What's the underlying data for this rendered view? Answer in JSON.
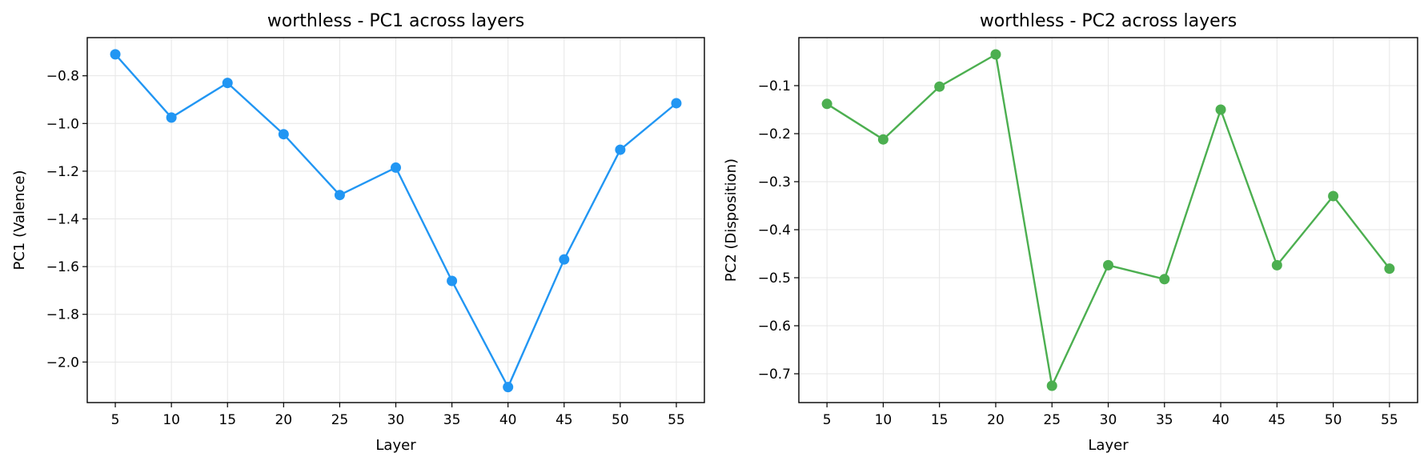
{
  "chart_data": [
    {
      "type": "line",
      "title": "worthless - PC1 across layers",
      "xlabel": "Layer",
      "ylabel": "PC1 (Valence)",
      "x": [
        5,
        10,
        15,
        20,
        25,
        30,
        35,
        40,
        45,
        50,
        55
      ],
      "series": [
        {
          "values": [
            -0.71,
            -0.975,
            -0.83,
            -1.045,
            -1.3,
            -1.185,
            -1.66,
            -2.105,
            -1.57,
            -1.11,
            -0.915
          ],
          "color": "#2196F3"
        }
      ],
      "xticks": [
        "5",
        "10",
        "15",
        "20",
        "25",
        "30",
        "35",
        "40",
        "45",
        "50",
        "55"
      ],
      "yticks": [
        -0.8,
        -1.0,
        -1.2,
        -1.4,
        -1.6,
        -1.8,
        -2.0
      ],
      "ytick_labels": [
        "−0.8",
        "−1.0",
        "−1.2",
        "−1.4",
        "−1.6",
        "−1.8",
        "−2.0"
      ],
      "xlim": [
        2.5,
        57.5
      ],
      "ylim": [
        -2.17,
        -0.64
      ],
      "grid": true
    },
    {
      "type": "line",
      "title": "worthless - PC2 across layers",
      "xlabel": "Layer",
      "ylabel": "PC2 (Disposition)",
      "x": [
        5,
        10,
        15,
        20,
        25,
        30,
        35,
        40,
        45,
        50,
        55
      ],
      "series": [
        {
          "values": [
            -0.138,
            -0.212,
            -0.102,
            -0.035,
            -0.725,
            -0.474,
            -0.503,
            -0.15,
            -0.474,
            -0.33,
            -0.481
          ],
          "color": "#4CAF50"
        }
      ],
      "xticks": [
        "5",
        "10",
        "15",
        "20",
        "25",
        "30",
        "35",
        "40",
        "45",
        "50",
        "55"
      ],
      "yticks": [
        -0.1,
        -0.2,
        -0.3,
        -0.4,
        -0.5,
        -0.6,
        -0.7
      ],
      "ytick_labels": [
        "−0.1",
        "−0.2",
        "−0.3",
        "−0.4",
        "−0.5",
        "−0.6",
        "−0.7"
      ],
      "xlim": [
        2.5,
        57.5
      ],
      "ylim": [
        -0.76,
        -0.0
      ],
      "grid": true
    }
  ]
}
